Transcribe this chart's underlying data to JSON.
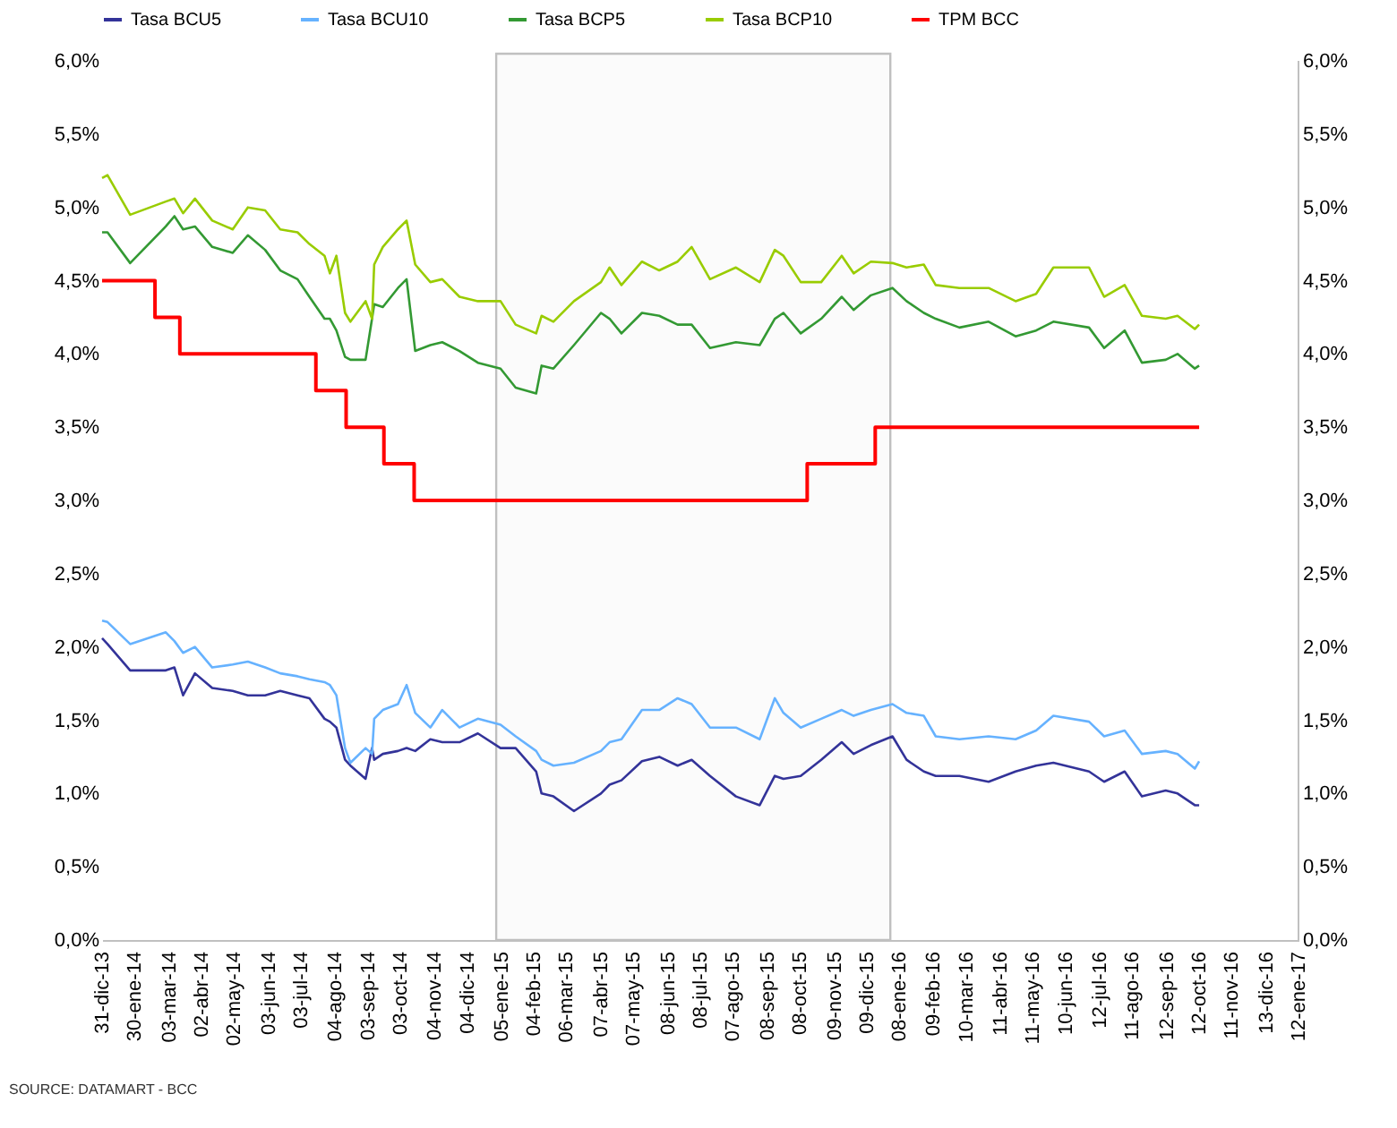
{
  "chart_data": {
    "type": "line",
    "legend": "top",
    "x": [
      "2013-12-31",
      "2014-01-05",
      "2014-01-26",
      "2014-02-28",
      "2014-03-08",
      "2014-03-16",
      "2014-03-27",
      "2014-04-12",
      "2014-05-01",
      "2014-05-15",
      "2014-05-31",
      "2014-06-14",
      "2014-06-30",
      "2014-07-11",
      "2014-07-25",
      "2014-07-30",
      "2014-08-05",
      "2014-08-13",
      "2014-08-18",
      "2014-09-01",
      "2014-09-07",
      "2014-09-09",
      "2014-09-17",
      "2014-10-01",
      "2014-10-09",
      "2014-10-17",
      "2014-10-31",
      "2014-11-11",
      "2014-11-27",
      "2014-12-14",
      "2015-01-04",
      "2015-01-18",
      "2015-02-06",
      "2015-02-11",
      "2015-02-22",
      "2015-03-13",
      "2015-04-07",
      "2015-04-15",
      "2015-04-26",
      "2015-05-15",
      "2015-05-31",
      "2015-06-17",
      "2015-06-30",
      "2015-07-17",
      "2015-08-10",
      "2015-09-01",
      "2015-09-15",
      "2015-09-23",
      "2015-10-09",
      "2015-10-28",
      "2015-11-16",
      "2015-11-27",
      "2015-12-13",
      "2016-01-02",
      "2016-01-15",
      "2016-01-31",
      "2016-02-11",
      "2016-03-04",
      "2016-03-31",
      "2016-04-25",
      "2016-05-14",
      "2016-05-30",
      "2016-07-02",
      "2016-07-16",
      "2016-08-04",
      "2016-08-20",
      "2016-09-11",
      "2016-09-22",
      "2016-10-08",
      "2016-10-12"
    ],
    "series": [
      {
        "name": "Tasa BCU5",
        "color": "#333399",
        "values": [
          2.06,
          2.02,
          1.84,
          1.84,
          1.86,
          1.67,
          1.82,
          1.72,
          1.7,
          1.67,
          1.67,
          1.7,
          1.67,
          1.65,
          1.51,
          1.49,
          1.45,
          1.23,
          1.19,
          1.1,
          1.31,
          1.23,
          1.27,
          1.29,
          1.31,
          1.29,
          1.37,
          1.35,
          1.35,
          1.41,
          1.31,
          1.31,
          1.15,
          1.0,
          0.98,
          0.88,
          1.0,
          1.06,
          1.09,
          1.22,
          1.25,
          1.19,
          1.23,
          1.12,
          0.98,
          0.92,
          1.12,
          1.1,
          1.12,
          1.23,
          1.35,
          1.27,
          1.33,
          1.39,
          1.23,
          1.15,
          1.12,
          1.12,
          1.08,
          1.15,
          1.19,
          1.21,
          1.15,
          1.08,
          1.15,
          0.98,
          1.02,
          1.0,
          0.92,
          0.92
        ]
      },
      {
        "name": "Tasa BCU10",
        "color": "#66b2ff",
        "values": [
          2.18,
          2.17,
          2.02,
          2.1,
          2.04,
          1.96,
          2.0,
          1.86,
          1.88,
          1.9,
          1.86,
          1.82,
          1.8,
          1.78,
          1.76,
          1.74,
          1.67,
          1.31,
          1.21,
          1.31,
          1.27,
          1.51,
          1.57,
          1.61,
          1.74,
          1.55,
          1.45,
          1.57,
          1.45,
          1.51,
          1.47,
          1.39,
          1.29,
          1.23,
          1.19,
          1.21,
          1.29,
          1.35,
          1.37,
          1.57,
          1.57,
          1.65,
          1.61,
          1.45,
          1.45,
          1.37,
          1.65,
          1.55,
          1.45,
          1.51,
          1.57,
          1.53,
          1.57,
          1.61,
          1.55,
          1.53,
          1.39,
          1.37,
          1.39,
          1.37,
          1.43,
          1.53,
          1.49,
          1.39,
          1.43,
          1.27,
          1.29,
          1.27,
          1.17,
          1.22
        ]
      },
      {
        "name": "Tasa BCP5",
        "color": "#339933",
        "values": [
          4.83,
          4.83,
          4.62,
          4.87,
          4.94,
          4.85,
          4.87,
          4.73,
          4.69,
          4.81,
          4.71,
          4.57,
          4.51,
          4.39,
          4.24,
          4.24,
          4.16,
          3.98,
          3.96,
          3.96,
          4.24,
          4.34,
          4.32,
          4.45,
          4.51,
          4.02,
          4.06,
          4.08,
          4.02,
          3.94,
          3.9,
          3.77,
          3.73,
          3.92,
          3.9,
          4.06,
          4.28,
          4.24,
          4.14,
          4.28,
          4.26,
          4.2,
          4.2,
          4.04,
          4.08,
          4.06,
          4.24,
          4.28,
          4.14,
          4.24,
          4.39,
          4.3,
          4.4,
          4.45,
          4.36,
          4.28,
          4.24,
          4.18,
          4.22,
          4.12,
          4.16,
          4.22,
          4.18,
          4.04,
          4.16,
          3.94,
          3.96,
          4.0,
          3.9,
          3.92
        ]
      },
      {
        "name": "Tasa BCP10",
        "color": "#99cc00",
        "values": [
          5.2,
          5.22,
          4.95,
          5.04,
          5.06,
          4.96,
          5.06,
          4.91,
          4.85,
          5.0,
          4.98,
          4.85,
          4.83,
          4.75,
          4.67,
          4.55,
          4.67,
          4.28,
          4.22,
          4.36,
          4.24,
          4.61,
          4.73,
          4.85,
          4.91,
          4.61,
          4.49,
          4.51,
          4.39,
          4.36,
          4.36,
          4.2,
          4.14,
          4.26,
          4.22,
          4.36,
          4.49,
          4.59,
          4.47,
          4.63,
          4.57,
          4.63,
          4.73,
          4.51,
          4.59,
          4.49,
          4.71,
          4.67,
          4.49,
          4.49,
          4.67,
          4.55,
          4.63,
          4.62,
          4.59,
          4.61,
          4.47,
          4.45,
          4.45,
          4.36,
          4.41,
          4.59,
          4.59,
          4.39,
          4.47,
          4.26,
          4.24,
          4.26,
          4.17,
          4.2
        ]
      },
      {
        "name": "TPM BCC",
        "color": "#ff0000",
        "type": "step",
        "x": [
          "2013-12-31",
          "2014-02-18",
          "2014-03-13",
          "2014-07-17",
          "2014-08-14",
          "2014-09-18",
          "2014-10-16",
          "2015-10-15",
          "2015-12-17",
          "2016-10-12"
        ],
        "values": [
          4.5,
          4.25,
          4.0,
          3.75,
          3.5,
          3.25,
          3.0,
          3.25,
          3.5,
          3.5
        ]
      }
    ],
    "xlim": [
      "2013-12-31",
      "2017-01-12"
    ],
    "xticks": [
      {
        "value": "2013-12-31",
        "label": "31-dic-13"
      },
      {
        "value": "2014-01-30",
        "label": "30-ene-14"
      },
      {
        "value": "2014-03-03",
        "label": "03-mar-14"
      },
      {
        "value": "2014-04-02",
        "label": "02-abr-14"
      },
      {
        "value": "2014-05-02",
        "label": "02-may-14"
      },
      {
        "value": "2014-06-03",
        "label": "03-jun-14"
      },
      {
        "value": "2014-07-03",
        "label": "03-jul-14"
      },
      {
        "value": "2014-08-04",
        "label": "04-ago-14"
      },
      {
        "value": "2014-09-03",
        "label": "03-sep-14"
      },
      {
        "value": "2014-10-03",
        "label": "03-oct-14"
      },
      {
        "value": "2014-11-04",
        "label": "04-nov-14"
      },
      {
        "value": "2014-12-04",
        "label": "04-dic-14"
      },
      {
        "value": "2015-01-05",
        "label": "05-ene-15"
      },
      {
        "value": "2015-02-04",
        "label": "04-feb-15"
      },
      {
        "value": "2015-03-06",
        "label": "06-mar-15"
      },
      {
        "value": "2015-04-07",
        "label": "07-abr-15"
      },
      {
        "value": "2015-05-07",
        "label": "07-may-15"
      },
      {
        "value": "2015-06-08",
        "label": "08-jun-15"
      },
      {
        "value": "2015-07-08",
        "label": "08-jul-15"
      },
      {
        "value": "2015-08-07",
        "label": "07-ago-15"
      },
      {
        "value": "2015-09-08",
        "label": "08-sep-15"
      },
      {
        "value": "2015-10-08",
        "label": "08-oct-15"
      },
      {
        "value": "2015-11-09",
        "label": "09-nov-15"
      },
      {
        "value": "2015-12-09",
        "label": "09-dic-15"
      },
      {
        "value": "2016-01-08",
        "label": "08-ene-16"
      },
      {
        "value": "2016-02-09",
        "label": "09-feb-16"
      },
      {
        "value": "2016-03-10",
        "label": "10-mar-16"
      },
      {
        "value": "2016-04-11",
        "label": "11-abr-16"
      },
      {
        "value": "2016-05-11",
        "label": "11-may-16"
      },
      {
        "value": "2016-06-10",
        "label": "10-jun-16"
      },
      {
        "value": "2016-07-12",
        "label": "12-jul-16"
      },
      {
        "value": "2016-08-11",
        "label": "11-ago-16"
      },
      {
        "value": "2016-09-12",
        "label": "12-sep-16"
      },
      {
        "value": "2016-10-12",
        "label": "12-oct-16"
      },
      {
        "value": "2016-11-11",
        "label": "11-nov-16"
      },
      {
        "value": "2016-12-13",
        "label": "13-dic-16"
      },
      {
        "value": "2017-01-12",
        "label": "12-ene-17"
      }
    ],
    "ylim": [
      0,
      6
    ],
    "yticks": [
      {
        "value": 0,
        "label": "0,0%"
      },
      {
        "value": 0.5,
        "label": "0,5%"
      },
      {
        "value": 1,
        "label": "1,0%"
      },
      {
        "value": 1.5,
        "label": "1,5%"
      },
      {
        "value": 2,
        "label": "2,0%"
      },
      {
        "value": 2.5,
        "label": "2,5%"
      },
      {
        "value": 3,
        "label": "3,0%"
      },
      {
        "value": 3.5,
        "label": "3,5%"
      },
      {
        "value": 4,
        "label": "4,0%"
      },
      {
        "value": 4.5,
        "label": "4,5%"
      },
      {
        "value": 5,
        "label": "5,0%"
      },
      {
        "value": 5.5,
        "label": "5,5%"
      },
      {
        "value": 6,
        "label": "6,0%"
      }
    ],
    "y2lim": [
      0,
      6
    ],
    "y2ticks": [
      {
        "value": 0,
        "label": "0,0%"
      },
      {
        "value": 0.5,
        "label": "0,5%"
      },
      {
        "value": 1,
        "label": "1,0%"
      },
      {
        "value": 1.5,
        "label": "1,5%"
      },
      {
        "value": 2,
        "label": "2,0%"
      },
      {
        "value": 2.5,
        "label": "2,5%"
      },
      {
        "value": 3,
        "label": "3,0%"
      },
      {
        "value": 3.5,
        "label": "3,5%"
      },
      {
        "value": 4,
        "label": "4,0%"
      },
      {
        "value": 4.5,
        "label": "4,5%"
      },
      {
        "value": 5,
        "label": "5,0%"
      },
      {
        "value": 5.5,
        "label": "5,5%"
      },
      {
        "value": 6,
        "label": "6,0%"
      }
    ],
    "bands": [
      {
        "axis": "x",
        "from": "2014-12-31",
        "to": "2015-12-31",
        "color": "#c0c0c0"
      }
    ],
    "annotations": [
      "SOURCE: DATAMART - BCC"
    ]
  }
}
